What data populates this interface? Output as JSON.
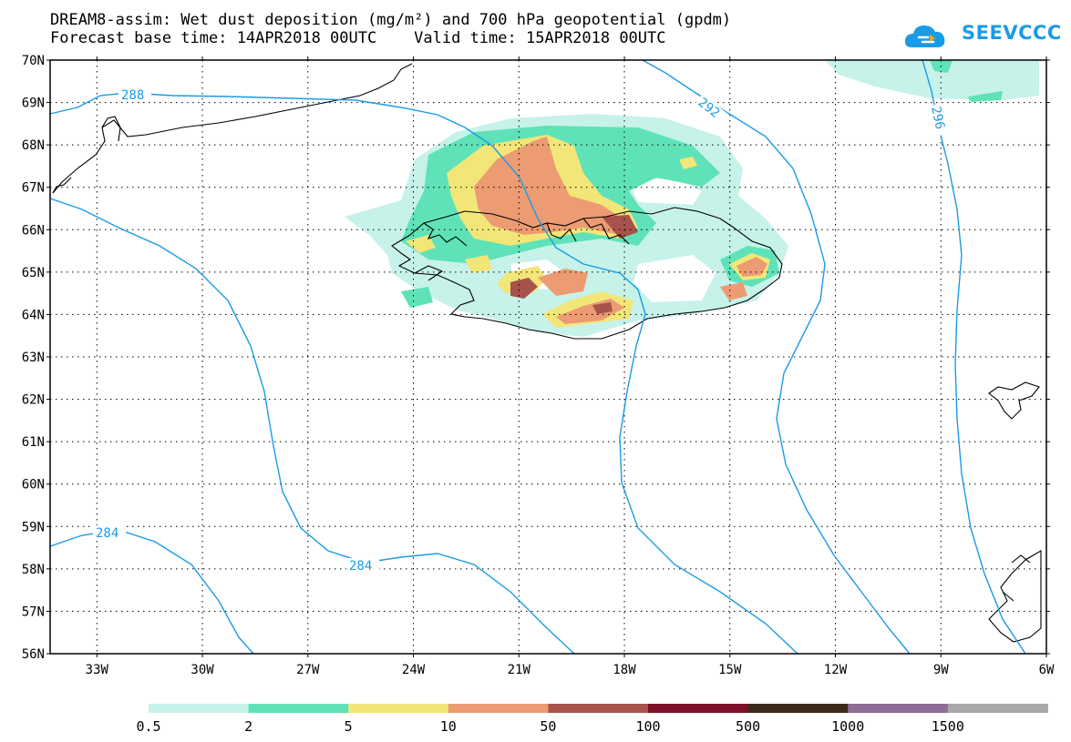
{
  "title": {
    "line1": "DREAM8-assim: Wet dust deposition (mg/m²) and 700 hPa geopotential (gpdm)",
    "line2": "Forecast base time: 14APR2018 00UTC    Valid time: 15APR2018 00UTC"
  },
  "logo": {
    "text": "SEEVCCC",
    "icon": "cloud-icon",
    "color": "#1a9be6"
  },
  "axes": {
    "lat_labels": [
      "70N",
      "69N",
      "68N",
      "67N",
      "66N",
      "65N",
      "64N",
      "63N",
      "62N",
      "61N",
      "60N",
      "59N",
      "58N",
      "57N",
      "56N"
    ],
    "lon_labels": [
      "33W",
      "30W",
      "27W",
      "24W",
      "21W",
      "18W",
      "15W",
      "12W",
      "9W",
      "6W"
    ]
  },
  "contours": {
    "color": "#1a9be6",
    "labels": [
      "288",
      "292",
      "296",
      "284",
      "284"
    ]
  },
  "legend": {
    "labels": [
      "0.5",
      "2",
      "5",
      "10",
      "50",
      "100",
      "500",
      "1000",
      "1500"
    ],
    "colors": [
      "#c6f2ea",
      "#5fe2b8",
      "#f2e678",
      "#ec9b72",
      "#a7524a",
      "#7e0f28",
      "#3b2a1b",
      "#8e6d96",
      "#a8a8a8"
    ]
  }
}
